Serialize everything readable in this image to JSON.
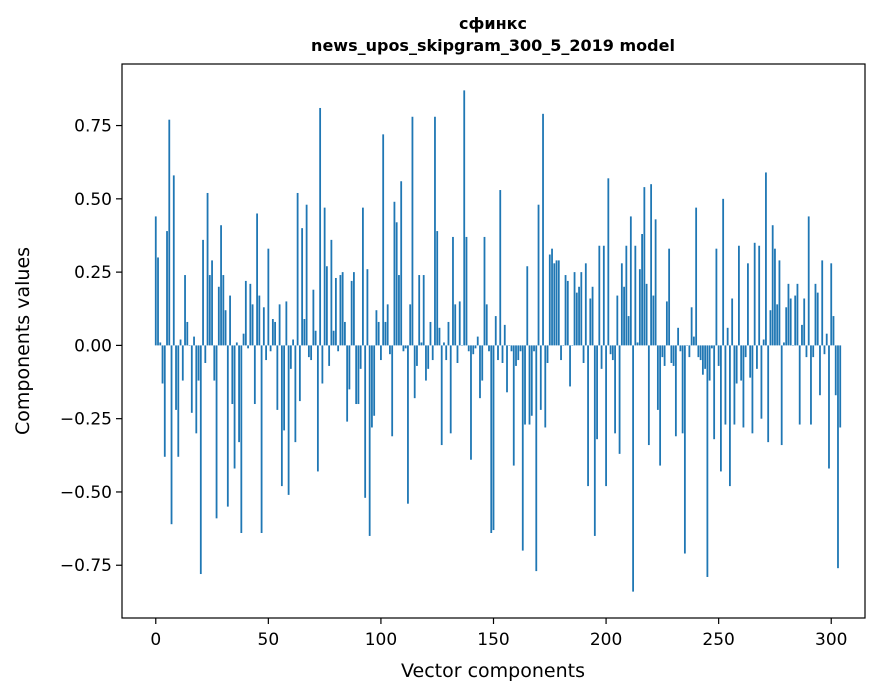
{
  "chart_data": {
    "type": "bar",
    "title": "сфинкс",
    "subtitle": "news_upos_skipgram_300_5_2019 model",
    "xlabel": "Vector components",
    "ylabel": "Components values",
    "xlim": [
      -15,
      315
    ],
    "ylim": [
      -0.93,
      0.96
    ],
    "xticks": [
      0,
      50,
      100,
      150,
      200,
      250,
      300
    ],
    "yticks": [
      -0.75,
      -0.5,
      -0.25,
      0.0,
      0.25,
      0.5,
      0.75
    ],
    "ytick_labels": [
      "−0.75",
      "−0.50",
      "−0.25",
      "0.00",
      "0.25",
      "0.50",
      "0.75"
    ],
    "grid": false,
    "color": "#1f77b4",
    "values": [
      0.44,
      0.3,
      0.01,
      -0.13,
      -0.38,
      0.39,
      0.77,
      -0.61,
      0.58,
      -0.22,
      -0.38,
      0.02,
      -0.12,
      0.24,
      0.08,
      0.0,
      -0.23,
      0.03,
      -0.3,
      -0.12,
      -0.78,
      0.36,
      -0.06,
      0.52,
      0.24,
      0.29,
      -0.12,
      -0.59,
      0.2,
      0.41,
      0.24,
      0.12,
      -0.55,
      0.17,
      -0.2,
      -0.42,
      0.01,
      -0.33,
      -0.64,
      0.04,
      0.22,
      -0.01,
      0.21,
      0.14,
      -0.2,
      0.45,
      0.17,
      -0.64,
      0.13,
      -0.05,
      0.33,
      -0.02,
      0.09,
      0.08,
      -0.22,
      0.14,
      -0.48,
      -0.29,
      0.15,
      -0.51,
      -0.08,
      0.02,
      -0.33,
      0.52,
      -0.19,
      0.4,
      0.09,
      0.48,
      -0.04,
      -0.05,
      0.19,
      0.05,
      -0.43,
      0.81,
      -0.13,
      0.47,
      0.27,
      -0.07,
      0.36,
      0.05,
      0.23,
      -0.02,
      0.24,
      0.25,
      0.08,
      -0.26,
      -0.15,
      0.22,
      0.25,
      -0.2,
      -0.2,
      -0.08,
      0.47,
      -0.52,
      0.26,
      -0.65,
      -0.28,
      -0.24,
      0.12,
      0.08,
      -0.05,
      0.72,
      0.08,
      0.14,
      -0.03,
      -0.31,
      0.49,
      0.42,
      0.24,
      0.56,
      -0.02,
      -0.01,
      -0.54,
      0.14,
      0.78,
      -0.18,
      -0.07,
      0.24,
      0.01,
      0.24,
      -0.12,
      -0.08,
      0.08,
      -0.05,
      0.78,
      0.39,
      0.06,
      -0.34,
      0.01,
      -0.05,
      0.08,
      -0.3,
      0.37,
      0.14,
      -0.06,
      0.15,
      0.0,
      0.87,
      0.37,
      -0.02,
      -0.39,
      -0.03,
      -0.01,
      0.03,
      -0.18,
      -0.12,
      0.37,
      0.14,
      -0.02,
      -0.64,
      -0.63,
      0.1,
      -0.05,
      0.53,
      -0.06,
      0.07,
      -0.16,
      0.0,
      -0.02,
      -0.41,
      -0.07,
      -0.05,
      -0.02,
      -0.7,
      -0.27,
      0.27,
      -0.27,
      -0.24,
      -0.02,
      -0.77,
      0.48,
      -0.22,
      0.79,
      -0.28,
      -0.06,
      0.31,
      0.33,
      0.28,
      0.29,
      0.29,
      -0.05,
      0.0,
      0.24,
      0.22,
      -0.14,
      0.0,
      0.25,
      0.18,
      0.2,
      0.25,
      -0.06,
      0.28,
      -0.48,
      0.16,
      0.2,
      -0.65,
      -0.32,
      0.34,
      -0.08,
      0.34,
      -0.48,
      0.57,
      -0.03,
      -0.05,
      -0.3,
      0.17,
      -0.37,
      0.28,
      0.2,
      0.34,
      0.1,
      0.44,
      -0.84,
      0.34,
      0.01,
      0.26,
      0.38,
      0.54,
      0.21,
      -0.34,
      0.55,
      0.17,
      0.43,
      -0.22,
      -0.41,
      -0.04,
      -0.07,
      0.15,
      0.33,
      -0.06,
      -0.07,
      -0.31,
      0.06,
      -0.02,
      -0.3,
      -0.71,
      0.0,
      -0.04,
      0.13,
      0.03,
      0.47,
      -0.04,
      -0.05,
      -0.1,
      -0.08,
      -0.79,
      -0.12,
      -0.01,
      -0.32,
      0.33,
      -0.07,
      -0.43,
      0.5,
      -0.27,
      0.06,
      -0.48,
      0.16,
      -0.27,
      -0.13,
      0.34,
      -0.12,
      -0.28,
      -0.04,
      0.28,
      -0.11,
      -0.3,
      0.35,
      -0.08,
      0.34,
      -0.25,
      0.02,
      0.59,
      -0.33,
      0.12,
      0.41,
      0.33,
      0.14,
      0.29,
      -0.34,
      0.01,
      0.13,
      0.21,
      0.16,
      0.0,
      0.17,
      0.21,
      -0.27,
      0.07,
      0.16,
      -0.04,
      0.44,
      -0.27,
      -0.04,
      0.21,
      0.18,
      -0.17,
      0.29,
      -0.03,
      0.04,
      -0.42,
      0.28,
      0.1,
      -0.17,
      -0.76,
      -0.28
    ]
  }
}
